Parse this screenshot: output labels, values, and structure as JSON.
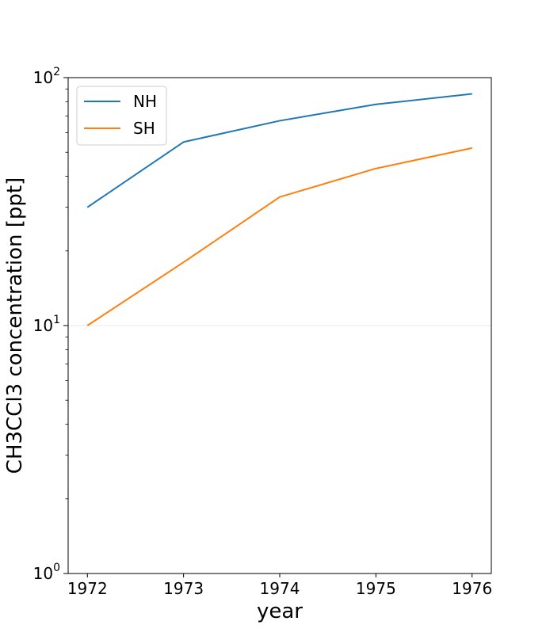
{
  "chart_data": {
    "type": "line",
    "title": "",
    "xlabel": "year",
    "ylabel": "CH3CCl3 concentration [ppt]",
    "x": [
      1972,
      1973,
      1974,
      1975,
      1976
    ],
    "series": [
      {
        "name": "NH",
        "color": "#1f77b4",
        "values": [
          30,
          55,
          67,
          78,
          86
        ]
      },
      {
        "name": "SH",
        "color": "#ff7f0e",
        "values": [
          10,
          18,
          33,
          43,
          52
        ]
      }
    ],
    "xlim": [
      1971.8,
      1976.2
    ],
    "ylim": [
      1,
      100
    ],
    "yscale": "log",
    "x_ticks": [
      "1972",
      "1973",
      "1974",
      "1975",
      "1976"
    ],
    "y_ticks": [
      {
        "value": 1,
        "base": "10",
        "exp": "0"
      },
      {
        "value": 10,
        "base": "10",
        "exp": "1"
      },
      {
        "value": 100,
        "base": "10",
        "exp": "2"
      }
    ],
    "grid": "major y only",
    "legend": "upper-left"
  }
}
